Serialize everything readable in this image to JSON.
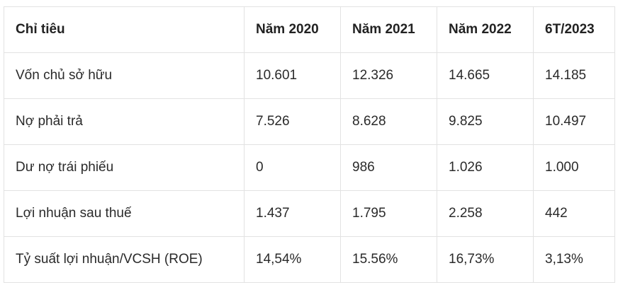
{
  "table": {
    "headers": [
      "Chỉ tiêu",
      "Năm 2020",
      "Năm 2021",
      "Năm 2022",
      "6T/2023"
    ],
    "rows": [
      [
        "Vốn chủ sở hữu",
        "10.601",
        "12.326",
        "14.665",
        "14.185"
      ],
      [
        "Nợ phải trả",
        "7.526",
        "8.628",
        "9.825",
        "10.497"
      ],
      [
        "Dư nợ trái phiếu",
        "0",
        "986",
        "1.026",
        "1.000"
      ],
      [
        "Lợi nhuận sau thuế",
        "1.437",
        "1.795",
        "2.258",
        "442"
      ],
      [
        "Tỷ suất lợi nhuận/VCSH (ROE)",
        "14,54%",
        "15.56%",
        "16,73%",
        "3,13%"
      ]
    ]
  }
}
